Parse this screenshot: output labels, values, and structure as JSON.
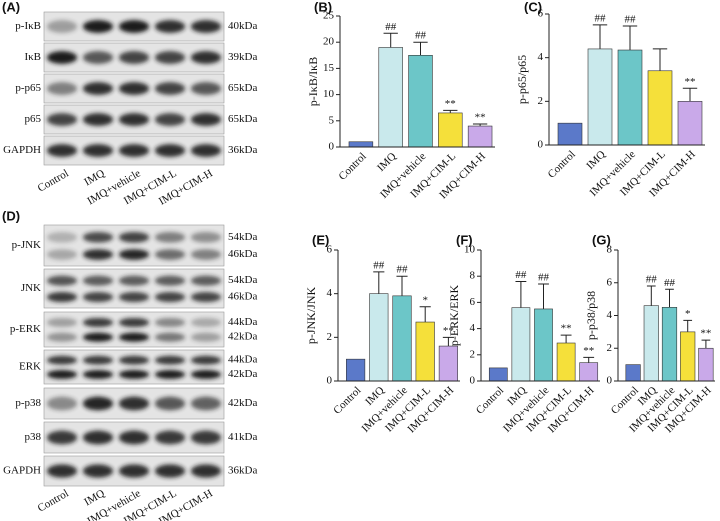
{
  "blots": [
    {
      "panel": "(A)",
      "rows": [
        {
          "label": "p-IκB",
          "kda": [
            "40kDa"
          ]
        },
        {
          "label": "IκB",
          "kda": [
            "39kDa"
          ]
        },
        {
          "label": "p-p65",
          "kda": [
            "65kDa"
          ]
        },
        {
          "label": "p65",
          "kda": [
            "65kDa"
          ]
        },
        {
          "label": "GAPDH",
          "kda": [
            "36kDa"
          ]
        }
      ],
      "lanes": [
        "Control",
        "IMQ",
        "IMQ+vehicle",
        "IMQ+CIM-L",
        "IMQ+CIM-H"
      ]
    },
    {
      "panel": "(D)",
      "rows": [
        {
          "label": "p-JNK",
          "kda": [
            "54kDa",
            "46kDa"
          ]
        },
        {
          "label": "JNK",
          "kda": [
            "54kDa",
            "46kDa"
          ]
        },
        {
          "label": "p-ERK",
          "kda": [
            "44kDa",
            "42kDa"
          ]
        },
        {
          "label": "ERK",
          "kda": [
            "44kDa",
            "42kDa"
          ]
        },
        {
          "label": "p-p38",
          "kda": [
            "42kDa"
          ]
        },
        {
          "label": "p38",
          "kda": [
            "41kDa"
          ]
        },
        {
          "label": "GAPDH",
          "kda": [
            "36kDa"
          ]
        }
      ],
      "lanes": [
        "Control",
        "IMQ",
        "IMQ+vehicle",
        "IMQ+CIM-L",
        "IMQ+CIM-H"
      ]
    }
  ],
  "chart_data": [
    {
      "type": "bar",
      "panel": "(B)",
      "ylabel": "p-IκB/IκB",
      "categories": [
        "Control",
        "IMQ",
        "IMQ+vehicle",
        "IMQ+CIM-L",
        "IMQ+CIM-H"
      ],
      "values": [
        1,
        19,
        17.5,
        6.5,
        4
      ],
      "errors": [
        null,
        2.7,
        2.5,
        0.5,
        0.4
      ],
      "annotations": [
        null,
        "##",
        "##",
        "**",
        "**"
      ],
      "colors": [
        "#5b79c9",
        "#c9e9ec",
        "#6cc6c8",
        "#f5e03a",
        "#c9a9e9"
      ],
      "ylim": [
        0,
        25
      ],
      "yticks": [
        0,
        5,
        10,
        15,
        20,
        25
      ]
    },
    {
      "type": "bar",
      "panel": "(C)",
      "ylabel": "p-p65/p65",
      "categories": [
        "Control",
        "IMQ",
        "IMQ+vehicle",
        "IMQ+CIM-L",
        "IMQ+CIM-H"
      ],
      "values": [
        1,
        4.4,
        4.35,
        3.4,
        2.0
      ],
      "errors": [
        null,
        1.1,
        1.1,
        1.0,
        0.6
      ],
      "annotations": [
        null,
        "##",
        "##",
        null,
        "**"
      ],
      "colors": [
        "#5b79c9",
        "#c9e9ec",
        "#6cc6c8",
        "#f5e03a",
        "#c9a9e9"
      ],
      "ylim": [
        0,
        6
      ],
      "yticks": [
        0,
        2,
        4,
        6
      ]
    },
    {
      "type": "bar",
      "panel": "(E)",
      "ylabel": "p-JNK/JNK",
      "categories": [
        "Control",
        "IMQ",
        "IMQ+vehicle",
        "IMQ+CIM-L",
        "IMQ+CIM-H"
      ],
      "values": [
        1,
        4.0,
        3.9,
        2.7,
        1.6
      ],
      "errors": [
        null,
        1.0,
        0.9,
        0.7,
        0.4
      ],
      "annotations": [
        null,
        "##",
        "##",
        "*",
        "**"
      ],
      "colors": [
        "#5b79c9",
        "#c9e9ec",
        "#6cc6c8",
        "#f5e03a",
        "#c9a9e9"
      ],
      "ylim": [
        0,
        6
      ],
      "yticks": [
        0,
        2,
        4,
        6
      ]
    },
    {
      "type": "bar",
      "panel": "(F)",
      "ylabel": "p-ERK/ERK",
      "categories": [
        "Control",
        "IMQ",
        "IMQ+vehicle",
        "IMQ+CIM-L",
        "IMQ+CIM-H"
      ],
      "values": [
        1,
        5.6,
        5.5,
        2.9,
        1.4
      ],
      "errors": [
        null,
        2.0,
        1.9,
        0.6,
        0.4
      ],
      "annotations": [
        null,
        "##",
        "##",
        "**",
        "**"
      ],
      "colors": [
        "#5b79c9",
        "#c9e9ec",
        "#6cc6c8",
        "#f5e03a",
        "#c9a9e9"
      ],
      "ylim": [
        0,
        10
      ],
      "yticks": [
        0,
        2,
        4,
        6,
        8,
        10
      ]
    },
    {
      "type": "bar",
      "panel": "(G)",
      "ylabel": "p-p38/p38",
      "categories": [
        "Control",
        "IMQ",
        "IMQ+vehicle",
        "IMQ+CIM-L",
        "IMQ+CIM-H"
      ],
      "values": [
        1,
        4.6,
        4.5,
        3.0,
        2.0
      ],
      "errors": [
        null,
        1.2,
        1.1,
        0.7,
        0.5
      ],
      "annotations": [
        null,
        "##",
        "##",
        "*",
        "**"
      ],
      "colors": [
        "#5b79c9",
        "#c9e9ec",
        "#6cc6c8",
        "#f5e03a",
        "#c9a9e9"
      ],
      "ylim": [
        0,
        8
      ],
      "yticks": [
        0,
        2,
        4,
        6,
        8
      ]
    }
  ]
}
